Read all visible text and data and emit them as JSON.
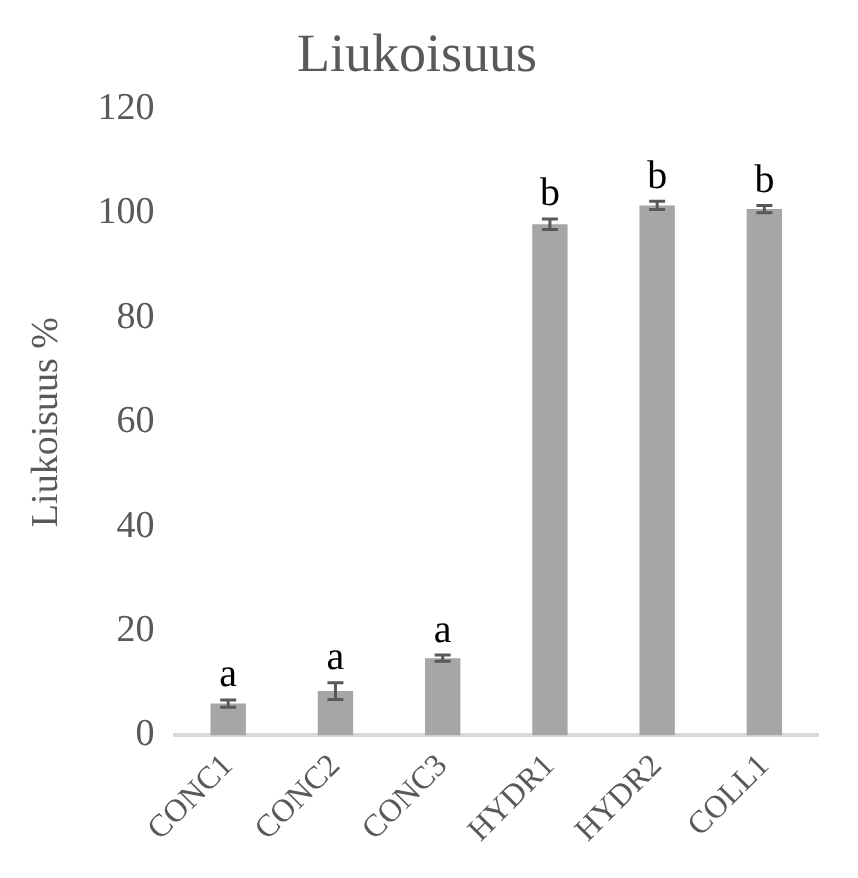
{
  "chart_data": {
    "type": "bar",
    "title": "Liukoisuus",
    "ylabel": "Liukoisuus %",
    "categories": [
      "CONC1",
      "CONC2",
      "CONC3",
      "HYDR1",
      "HYDR2",
      "COLL1"
    ],
    "values": [
      6.1,
      8.5,
      14.8,
      97.9,
      101.5,
      100.8
    ],
    "errors": [
      0.7,
      1.6,
      0.6,
      1,
      0.8,
      0.7
    ],
    "color": "#a6a6a6",
    "ylim": [
      0,
      120
    ],
    "yticks": [
      0,
      20,
      40,
      60,
      80,
      100,
      120
    ],
    "grid": false,
    "annotations": [
      {
        "text": "a",
        "x": "CONC1",
        "y": 6.8
      },
      {
        "text": "a",
        "x": "CONC2",
        "y": 10.1
      },
      {
        "text": "a",
        "x": "CONC3",
        "y": 15.4
      },
      {
        "text": "b",
        "x": "HYDR1",
        "y": 98.9
      },
      {
        "text": "b",
        "x": "HYDR2",
        "y": 102.3
      },
      {
        "text": "b",
        "x": "COLL1",
        "y": 101.5
      }
    ]
  }
}
